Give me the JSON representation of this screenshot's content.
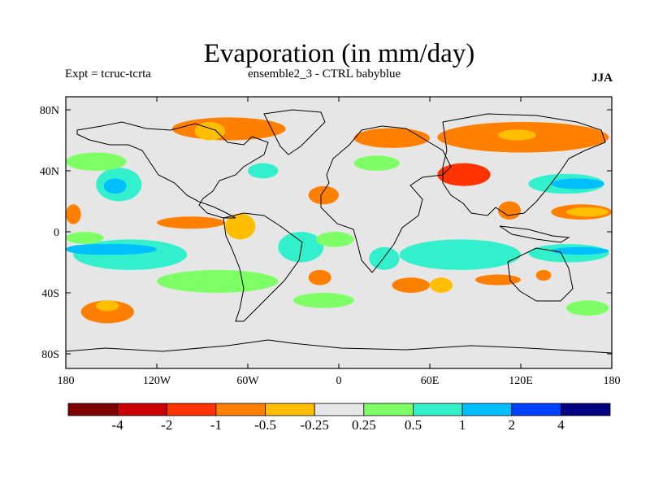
{
  "header": {
    "title": "Evaporation (in mm/day)",
    "experiment": "Expt = tcruc-tcrta",
    "ensemble": "ensemble2_3 - CTRL babyblue",
    "season": "JJA"
  },
  "map": {
    "lat_ticks": [
      {
        "lat": 80,
        "label": "80N"
      },
      {
        "lat": 40,
        "label": "40N"
      },
      {
        "lat": 0,
        "label": "0"
      },
      {
        "lat": -40,
        "label": "40S"
      },
      {
        "lat": -80,
        "label": "80S"
      }
    ],
    "lon_ticks": [
      {
        "lon": -180,
        "label": "180"
      },
      {
        "lon": -120,
        "label": "120W"
      },
      {
        "lon": -60,
        "label": "60W"
      },
      {
        "lon": 0,
        "label": "0"
      },
      {
        "lon": 60,
        "label": "60E"
      },
      {
        "lon": 120,
        "label": "120E"
      },
      {
        "lon": 180,
        "label": "180"
      }
    ],
    "background_color": "#e6e6e6",
    "anomaly_regions": [
      {
        "bin": 3,
        "lon": [
          -110,
          -35
        ],
        "lat": [
          60,
          75
        ]
      },
      {
        "bin": 4,
        "lon": [
          -95,
          -75
        ],
        "lat": [
          60,
          72
        ]
      },
      {
        "bin": 3,
        "lon": [
          10,
          60
        ],
        "lat": [
          55,
          68
        ]
      },
      {
        "bin": 3,
        "lon": [
          65,
          178
        ],
        "lat": [
          52,
          72
        ]
      },
      {
        "bin": 4,
        "lon": [
          105,
          130
        ],
        "lat": [
          60,
          67
        ]
      },
      {
        "bin": 2,
        "lon": [
          65,
          100
        ],
        "lat": [
          30,
          45
        ]
      },
      {
        "bin": 3,
        "lon": [
          -20,
          0
        ],
        "lat": [
          18,
          30
        ]
      },
      {
        "bin": 3,
        "lon": [
          -180,
          -170
        ],
        "lat": [
          5,
          18
        ]
      },
      {
        "bin": 3,
        "lon": [
          -120,
          -75
        ],
        "lat": [
          2,
          10
        ]
      },
      {
        "bin": 4,
        "lon": [
          -75,
          -55
        ],
        "lat": [
          -5,
          12
        ]
      },
      {
        "bin": 3,
        "lon": [
          140,
          180
        ],
        "lat": [
          8,
          18
        ]
      },
      {
        "bin": 4,
        "lon": [
          150,
          178
        ],
        "lat": [
          10,
          16
        ]
      },
      {
        "bin": 3,
        "lon": [
          105,
          120
        ],
        "lat": [
          8,
          20
        ]
      },
      {
        "bin": 4,
        "lon": [
          60,
          75
        ],
        "lat": [
          -40,
          -30
        ]
      },
      {
        "bin": 3,
        "lon": [
          35,
          60
        ],
        "lat": [
          -40,
          -30
        ]
      },
      {
        "bin": 3,
        "lon": [
          -170,
          -135
        ],
        "lat": [
          -60,
          -45
        ]
      },
      {
        "bin": 4,
        "lon": [
          -160,
          -145
        ],
        "lat": [
          -52,
          -45
        ]
      },
      {
        "bin": 3,
        "lon": [
          90,
          120
        ],
        "lat": [
          -35,
          -28
        ]
      },
      {
        "bin": 3,
        "lon": [
          130,
          140
        ],
        "lat": [
          -32,
          -25
        ]
      },
      {
        "bin": 3,
        "lon": [
          -20,
          -5
        ],
        "lat": [
          -35,
          -25
        ]
      },
      {
        "bin": 7,
        "lon": [
          -160,
          -130
        ],
        "lat": [
          20,
          42
        ]
      },
      {
        "bin": 8,
        "lon": [
          -155,
          -140
        ],
        "lat": [
          25,
          35
        ]
      },
      {
        "bin": 6,
        "lon": [
          -180,
          -140
        ],
        "lat": [
          40,
          52
        ]
      },
      {
        "bin": 7,
        "lon": [
          -175,
          -100
        ],
        "lat": [
          -25,
          -5
        ]
      },
      {
        "bin": 8,
        "lon": [
          -175,
          -120
        ],
        "lat": [
          -15,
          -8
        ]
      },
      {
        "bin": 6,
        "lon": [
          -120,
          -40
        ],
        "lat": [
          -40,
          -25
        ]
      },
      {
        "bin": 7,
        "lon": [
          -40,
          -10
        ],
        "lat": [
          -20,
          0
        ]
      },
      {
        "bin": 6,
        "lon": [
          -15,
          10
        ],
        "lat": [
          -10,
          0
        ]
      },
      {
        "bin": 7,
        "lon": [
          20,
          40
        ],
        "lat": [
          -25,
          -10
        ]
      },
      {
        "bin": 7,
        "lon": [
          40,
          120
        ],
        "lat": [
          -25,
          -5
        ]
      },
      {
        "bin": 6,
        "lon": [
          10,
          40
        ],
        "lat": [
          40,
          50
        ]
      },
      {
        "bin": 7,
        "lon": [
          125,
          175
        ],
        "lat": [
          25,
          38
        ]
      },
      {
        "bin": 8,
        "lon": [
          140,
          175
        ],
        "lat": [
          28,
          35
        ]
      },
      {
        "bin": 7,
        "lon": [
          125,
          178
        ],
        "lat": [
          -20,
          -8
        ]
      },
      {
        "bin": 8,
        "lon": [
          140,
          178
        ],
        "lat": [
          -15,
          -10
        ]
      },
      {
        "bin": 6,
        "lon": [
          -180,
          -155
        ],
        "lat": [
          -8,
          0
        ]
      },
      {
        "bin": 8,
        "lon": [
          -180,
          -140
        ],
        "lat": [
          -15,
          -8
        ]
      },
      {
        "bin": 7,
        "lon": [
          -60,
          -40
        ],
        "lat": [
          35,
          45
        ]
      },
      {
        "bin": 6,
        "lon": [
          -30,
          10
        ],
        "lat": [
          -50,
          -40
        ]
      },
      {
        "bin": 6,
        "lon": [
          150,
          178
        ],
        "lat": [
          -55,
          -45
        ]
      }
    ]
  },
  "colorbar": {
    "colors": [
      "#7f0000",
      "#cc0000",
      "#ff3300",
      "#ff7f00",
      "#ffbf00",
      "#e6e6e6",
      "#7fff66",
      "#33f0cc",
      "#00bfff",
      "#0040ff",
      "#000080"
    ],
    "labels": [
      "-4",
      "-2",
      "-1",
      "-0.5",
      "-0.25",
      "0.25",
      "0.5",
      "1",
      "2",
      "4"
    ]
  }
}
